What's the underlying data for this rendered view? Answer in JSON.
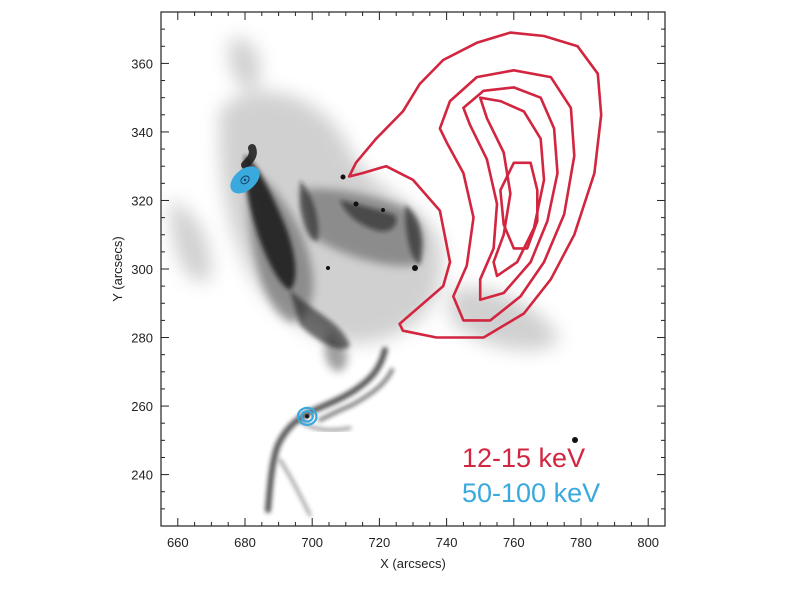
{
  "chart_data": {
    "type": "contour",
    "xlabel": "X (arcsecs)",
    "ylabel": "Y (arcsecs)",
    "xlim": [
      655,
      805
    ],
    "ylim": [
      225,
      375
    ],
    "xticks": [
      660,
      680,
      700,
      720,
      740,
      760,
      780,
      800
    ],
    "yticks": [
      240,
      260,
      280,
      300,
      320,
      340,
      360
    ],
    "background": "grayscale EUV/UV flare image (dark emission on white)",
    "series": [
      {
        "name": "12-15 keV",
        "color": "#d2253f",
        "kind": "contours",
        "contours": [
          [
            [
              711,
              327
            ],
            [
              713,
              331
            ],
            [
              719,
              338
            ],
            [
              727,
              346
            ],
            [
              732,
              354
            ],
            [
              739,
              361
            ],
            [
              749,
              366
            ],
            [
              759,
              369
            ],
            [
              769,
              368
            ],
            [
              779,
              365
            ],
            [
              785,
              357
            ],
            [
              786,
              345
            ],
            [
              784,
              328
            ],
            [
              778,
              310
            ],
            [
              771,
              297
            ],
            [
              763,
              287
            ],
            [
              751,
              280
            ],
            [
              737,
              280
            ],
            [
              727,
              282
            ],
            [
              726,
              284
            ],
            [
              739,
              295
            ],
            [
              741,
              302
            ],
            [
              738,
              317
            ],
            [
              730,
              326
            ],
            [
              722,
              330
            ],
            [
              715,
              328
            ],
            [
              711,
              327
            ]
          ],
          [
            [
              738,
              341
            ],
            [
              741,
              349
            ],
            [
              749,
              356
            ],
            [
              760,
              358
            ],
            [
              771,
              356
            ],
            [
              777,
              347
            ],
            [
              778,
              333
            ],
            [
              775,
              316
            ],
            [
              769,
              302
            ],
            [
              762,
              292
            ],
            [
              753,
              285
            ],
            [
              745,
              285
            ],
            [
              742,
              292
            ],
            [
              746,
              301
            ],
            [
              748,
              315
            ],
            [
              745,
              328
            ],
            [
              740,
              337
            ],
            [
              738,
              341
            ]
          ],
          [
            [
              745,
              347
            ],
            [
              751,
              352
            ],
            [
              760,
              353
            ],
            [
              768,
              350
            ],
            [
              772,
              341
            ],
            [
              773,
              328
            ],
            [
              770,
              314
            ],
            [
              765,
              302
            ],
            [
              757,
              293
            ],
            [
              750,
              291
            ],
            [
              750,
              297
            ],
            [
              754,
              306
            ],
            [
              755,
              319
            ],
            [
              752,
              332
            ],
            [
              747,
              342
            ],
            [
              745,
              347
            ]
          ],
          [
            [
              750,
              350
            ],
            [
              756,
              349
            ],
            [
              763,
              346
            ],
            [
              768,
              338
            ],
            [
              769,
              326
            ],
            [
              766,
              312
            ],
            [
              761,
              302
            ],
            [
              755,
              298
            ],
            [
              754,
              302
            ],
            [
              757,
              310
            ],
            [
              759,
              322
            ],
            [
              757,
              334
            ],
            [
              752,
              344
            ],
            [
              750,
              350
            ]
          ],
          [
            [
              756,
              323
            ],
            [
              760,
              331
            ],
            [
              765,
              331
            ],
            [
              767,
              323
            ],
            [
              767,
              314
            ],
            [
              764,
              306
            ],
            [
              760,
              306
            ],
            [
              757,
              313
            ],
            [
              756,
              323
            ]
          ]
        ]
      },
      {
        "name": "50-100 keV",
        "color": "#3aa9dd",
        "kind": "footpoints",
        "sources": [
          {
            "x": 680,
            "y": 326,
            "rx": 4.8,
            "ry": 2.9,
            "angle": -40
          },
          {
            "x": 698.5,
            "y": 257,
            "rx": 2.4,
            "ry": 2.2,
            "angle": 0
          }
        ]
      }
    ],
    "legend": {
      "placement": "bottom-right",
      "entries": [
        {
          "label": "12-15 keV",
          "color": "#d2253f"
        },
        {
          "label": "50-100 keV",
          "color": "#3aa9dd"
        }
      ]
    },
    "colors": {
      "red_contour": "#d2253f",
      "blue_contour": "#3aa9dd",
      "frame": "#222222"
    }
  }
}
